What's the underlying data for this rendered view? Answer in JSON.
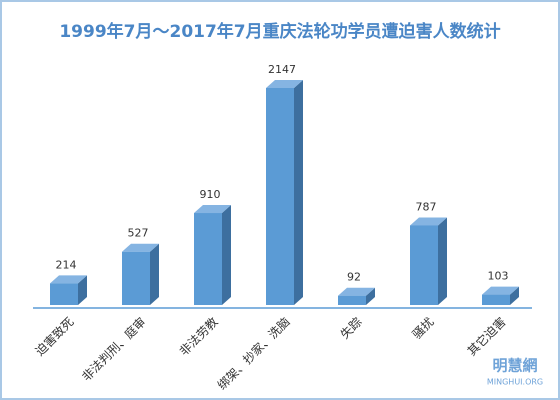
{
  "chart_data": {
    "type": "bar3d",
    "title": "1999年7月～2017年7月重庆法轮功学员遭迫害人数统计",
    "categories": [
      "迫害致死",
      "非法判刑、庭审",
      "非法劳教",
      "绑架、抄家、洗脑",
      "失踪",
      "骚扰",
      "其它迫害"
    ],
    "values": [
      214,
      527,
      910,
      2147,
      92,
      787,
      103
    ],
    "color": "#5b9bd5",
    "watermark": "明慧網",
    "watermark_sub": "MINGHUI.ORG"
  }
}
